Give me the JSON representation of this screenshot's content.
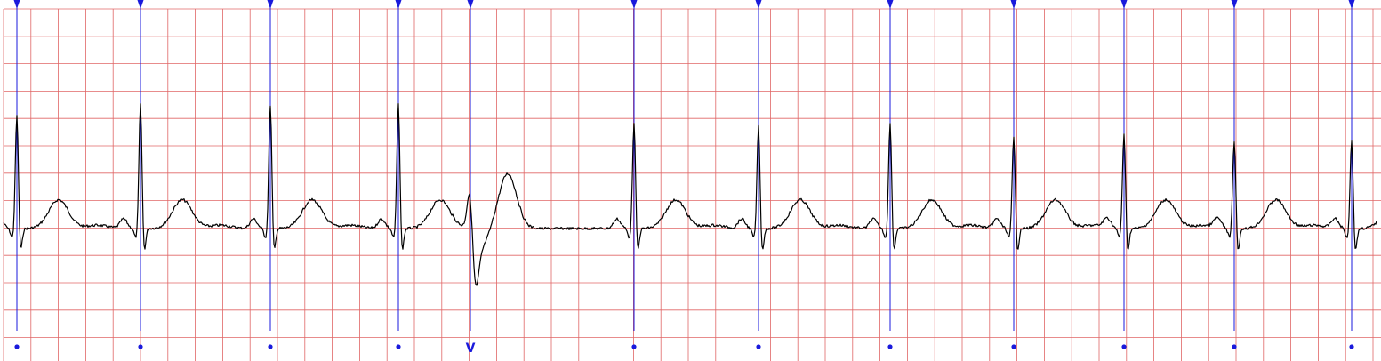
{
  "chart_data": {
    "type": "line",
    "title": "",
    "xlabel": "",
    "ylabel": "",
    "grid": true,
    "colors": {
      "grid": "#e06666",
      "trace": "#000000",
      "annotation": "#1a1adc",
      "background": "#ffffff"
    },
    "beats": [
      {
        "x": 19,
        "label": "•",
        "type": "normal",
        "r_amp": 4.2
      },
      {
        "x": 158,
        "label": "•",
        "type": "normal",
        "r_amp": 4.6
      },
      {
        "x": 304,
        "label": "•",
        "type": "normal",
        "r_amp": 4.6
      },
      {
        "x": 448,
        "label": "•",
        "type": "normal",
        "r_amp": 4.6
      },
      {
        "x": 529,
        "label": "V",
        "type": "ventricular",
        "r_amp": 2.0
      },
      {
        "x": 713,
        "label": "•",
        "type": "normal",
        "r_amp": 3.9
      },
      {
        "x": 853,
        "label": "•",
        "type": "normal",
        "r_amp": 3.8
      },
      {
        "x": 1001,
        "label": "•",
        "type": "normal",
        "r_amp": 3.9
      },
      {
        "x": 1140,
        "label": "•",
        "type": "normal",
        "r_amp": 3.4
      },
      {
        "x": 1264,
        "label": "•",
        "type": "normal",
        "r_amp": 3.5
      },
      {
        "x": 1388,
        "label": "•",
        "type": "normal",
        "r_amp": 3.3
      },
      {
        "x": 1520,
        "label": "•",
        "type": "normal",
        "r_amp": 3.3
      }
    ]
  }
}
